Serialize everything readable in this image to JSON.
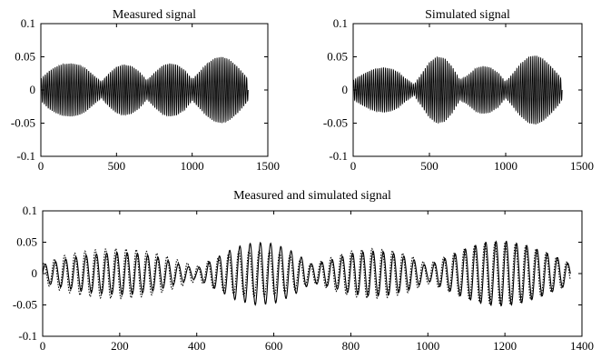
{
  "chart_data": [
    {
      "type": "line",
      "title": "Measured signal",
      "xlabel": "",
      "ylabel": "",
      "xlim": [
        0,
        1500
      ],
      "ylim": [
        -0.1,
        0.1
      ],
      "xticks": [
        0,
        500,
        1000,
        1500
      ],
      "yticks": [
        -0.1,
        -0.05,
        0,
        0.05,
        0.1
      ],
      "xtick_labels": [
        "0",
        "500",
        "1000",
        "1500"
      ],
      "ytick_labels": [
        "-0.1",
        "-0.05",
        "0",
        "0.05",
        "0.1"
      ],
      "grid": false,
      "series": [
        {
          "style": "solid",
          "color": "#000000",
          "x": [
            0,
            50,
            100,
            150,
            200,
            250,
            300,
            350,
            400,
            450,
            500,
            550,
            600,
            650,
            700,
            750,
            800,
            850,
            900,
            950,
            1000,
            1050,
            1100,
            1150,
            1200,
            1250,
            1300,
            1350,
            1370
          ],
          "envelope": [
            0.016,
            0.028,
            0.035,
            0.039,
            0.04,
            0.038,
            0.032,
            0.022,
            0.012,
            0.025,
            0.035,
            0.038,
            0.036,
            0.028,
            0.014,
            0.026,
            0.036,
            0.04,
            0.038,
            0.03,
            0.016,
            0.028,
            0.04,
            0.048,
            0.05,
            0.045,
            0.035,
            0.022,
            0.015
          ]
        }
      ]
    },
    {
      "type": "line",
      "title": "Simulated signal",
      "xlabel": "",
      "ylabel": "",
      "xlim": [
        0,
        1500
      ],
      "ylim": [
        -0.1,
        0.1
      ],
      "xticks": [
        0,
        500,
        1000,
        1500
      ],
      "yticks": [
        -0.1,
        -0.05,
        0,
        0.05,
        0.1
      ],
      "xtick_labels": [
        "0",
        "500",
        "1000",
        "1500"
      ],
      "ytick_labels": [
        "-0.1",
        "-0.05",
        "0",
        "0.05",
        "0.1"
      ],
      "grid": false,
      "series": [
        {
          "style": "solid",
          "color": "#000000",
          "x": [
            0,
            50,
            100,
            150,
            200,
            250,
            300,
            350,
            400,
            450,
            500,
            550,
            600,
            650,
            700,
            750,
            800,
            850,
            900,
            950,
            1000,
            1050,
            1100,
            1150,
            1200,
            1250,
            1300,
            1350,
            1370
          ],
          "envelope": [
            0.014,
            0.022,
            0.028,
            0.032,
            0.034,
            0.032,
            0.026,
            0.016,
            0.008,
            0.025,
            0.042,
            0.05,
            0.048,
            0.035,
            0.015,
            0.022,
            0.032,
            0.036,
            0.034,
            0.026,
            0.012,
            0.026,
            0.04,
            0.05,
            0.052,
            0.046,
            0.035,
            0.022,
            0.014
          ]
        }
      ]
    },
    {
      "type": "line",
      "title": "Measured and simulated signal",
      "xlabel": "",
      "ylabel": "",
      "xlim": [
        0,
        1400
      ],
      "ylim": [
        -0.1,
        0.1
      ],
      "xticks": [
        0,
        200,
        400,
        600,
        800,
        1000,
        1200,
        1400
      ],
      "yticks": [
        -0.1,
        -0.05,
        0,
        0.05,
        0.1
      ],
      "xtick_labels": [
        "0",
        "200",
        "400",
        "600",
        "800",
        "1000",
        "1200",
        "1400"
      ],
      "ytick_labels": [
        "-0.1",
        "-0.05",
        "0",
        "0.05",
        "0.1"
      ],
      "grid": false,
      "series": [
        {
          "style": "solid",
          "color": "#000000",
          "x": [
            0,
            50,
            100,
            150,
            200,
            250,
            300,
            350,
            400,
            450,
            500,
            550,
            600,
            650,
            700,
            750,
            800,
            850,
            900,
            950,
            1000,
            1050,
            1100,
            1150,
            1200,
            1250,
            1300,
            1350,
            1370
          ],
          "envelope": [
            0.014,
            0.022,
            0.028,
            0.032,
            0.034,
            0.032,
            0.026,
            0.016,
            0.008,
            0.025,
            0.042,
            0.05,
            0.048,
            0.035,
            0.015,
            0.022,
            0.032,
            0.036,
            0.034,
            0.026,
            0.012,
            0.026,
            0.04,
            0.05,
            0.052,
            0.046,
            0.035,
            0.022,
            0.014
          ]
        },
        {
          "style": "dotted",
          "color": "#000000",
          "x": [
            0,
            50,
            100,
            150,
            200,
            250,
            300,
            350,
            400,
            450,
            500,
            550,
            600,
            650,
            700,
            750,
            800,
            850,
            900,
            950,
            1000,
            1050,
            1100,
            1150,
            1200,
            1250,
            1300,
            1350,
            1370
          ],
          "envelope": [
            0.016,
            0.028,
            0.035,
            0.039,
            0.04,
            0.038,
            0.032,
            0.022,
            0.012,
            0.025,
            0.035,
            0.038,
            0.036,
            0.028,
            0.014,
            0.026,
            0.036,
            0.04,
            0.038,
            0.03,
            0.016,
            0.028,
            0.04,
            0.048,
            0.05,
            0.045,
            0.035,
            0.022,
            0.015
          ]
        }
      ]
    }
  ]
}
